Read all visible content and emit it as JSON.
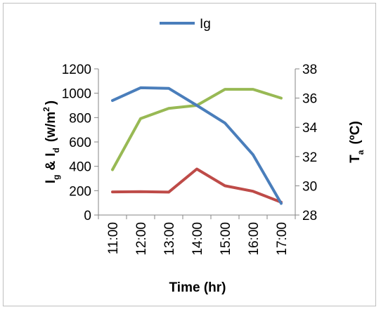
{
  "chart_data": {
    "type": "line",
    "categories": [
      "11:00",
      "12:00",
      "13:00",
      "14:00",
      "15:00",
      "16:00",
      "17:00"
    ],
    "series": [
      {
        "name": "Ig",
        "axis": "left",
        "color": "#4a7ebb",
        "values": [
          940,
          1045,
          1040,
          900,
          755,
          495,
          95
        ]
      },
      {
        "axis": "left",
        "color": "#be4b48",
        "values": [
          190,
          192,
          188,
          378,
          240,
          195,
          105
        ]
      },
      {
        "axis": "right",
        "color": "#98b954",
        "values": [
          31.1,
          34.6,
          35.3,
          35.5,
          36.6,
          36.6,
          36.0
        ]
      }
    ],
    "xlabel": "Time (hr)",
    "ylabel_left": {
      "main1": "I",
      "sub1": "g",
      "amp": "&",
      "main2": "I",
      "sub2": "d",
      "unit": "(w/m",
      "sup": "2",
      "close": ")"
    },
    "ylabel_right": {
      "main": "T",
      "sub": "a",
      "unit": "(ºC)"
    },
    "ylim_left": [
      0,
      1200
    ],
    "yticks_left": [
      0,
      200,
      400,
      600,
      800,
      1000,
      1200
    ],
    "ylim_right": [
      28,
      38
    ],
    "yticks_right": [
      28,
      30,
      32,
      34,
      36,
      38
    ],
    "grid": false,
    "legend_position": "top"
  }
}
